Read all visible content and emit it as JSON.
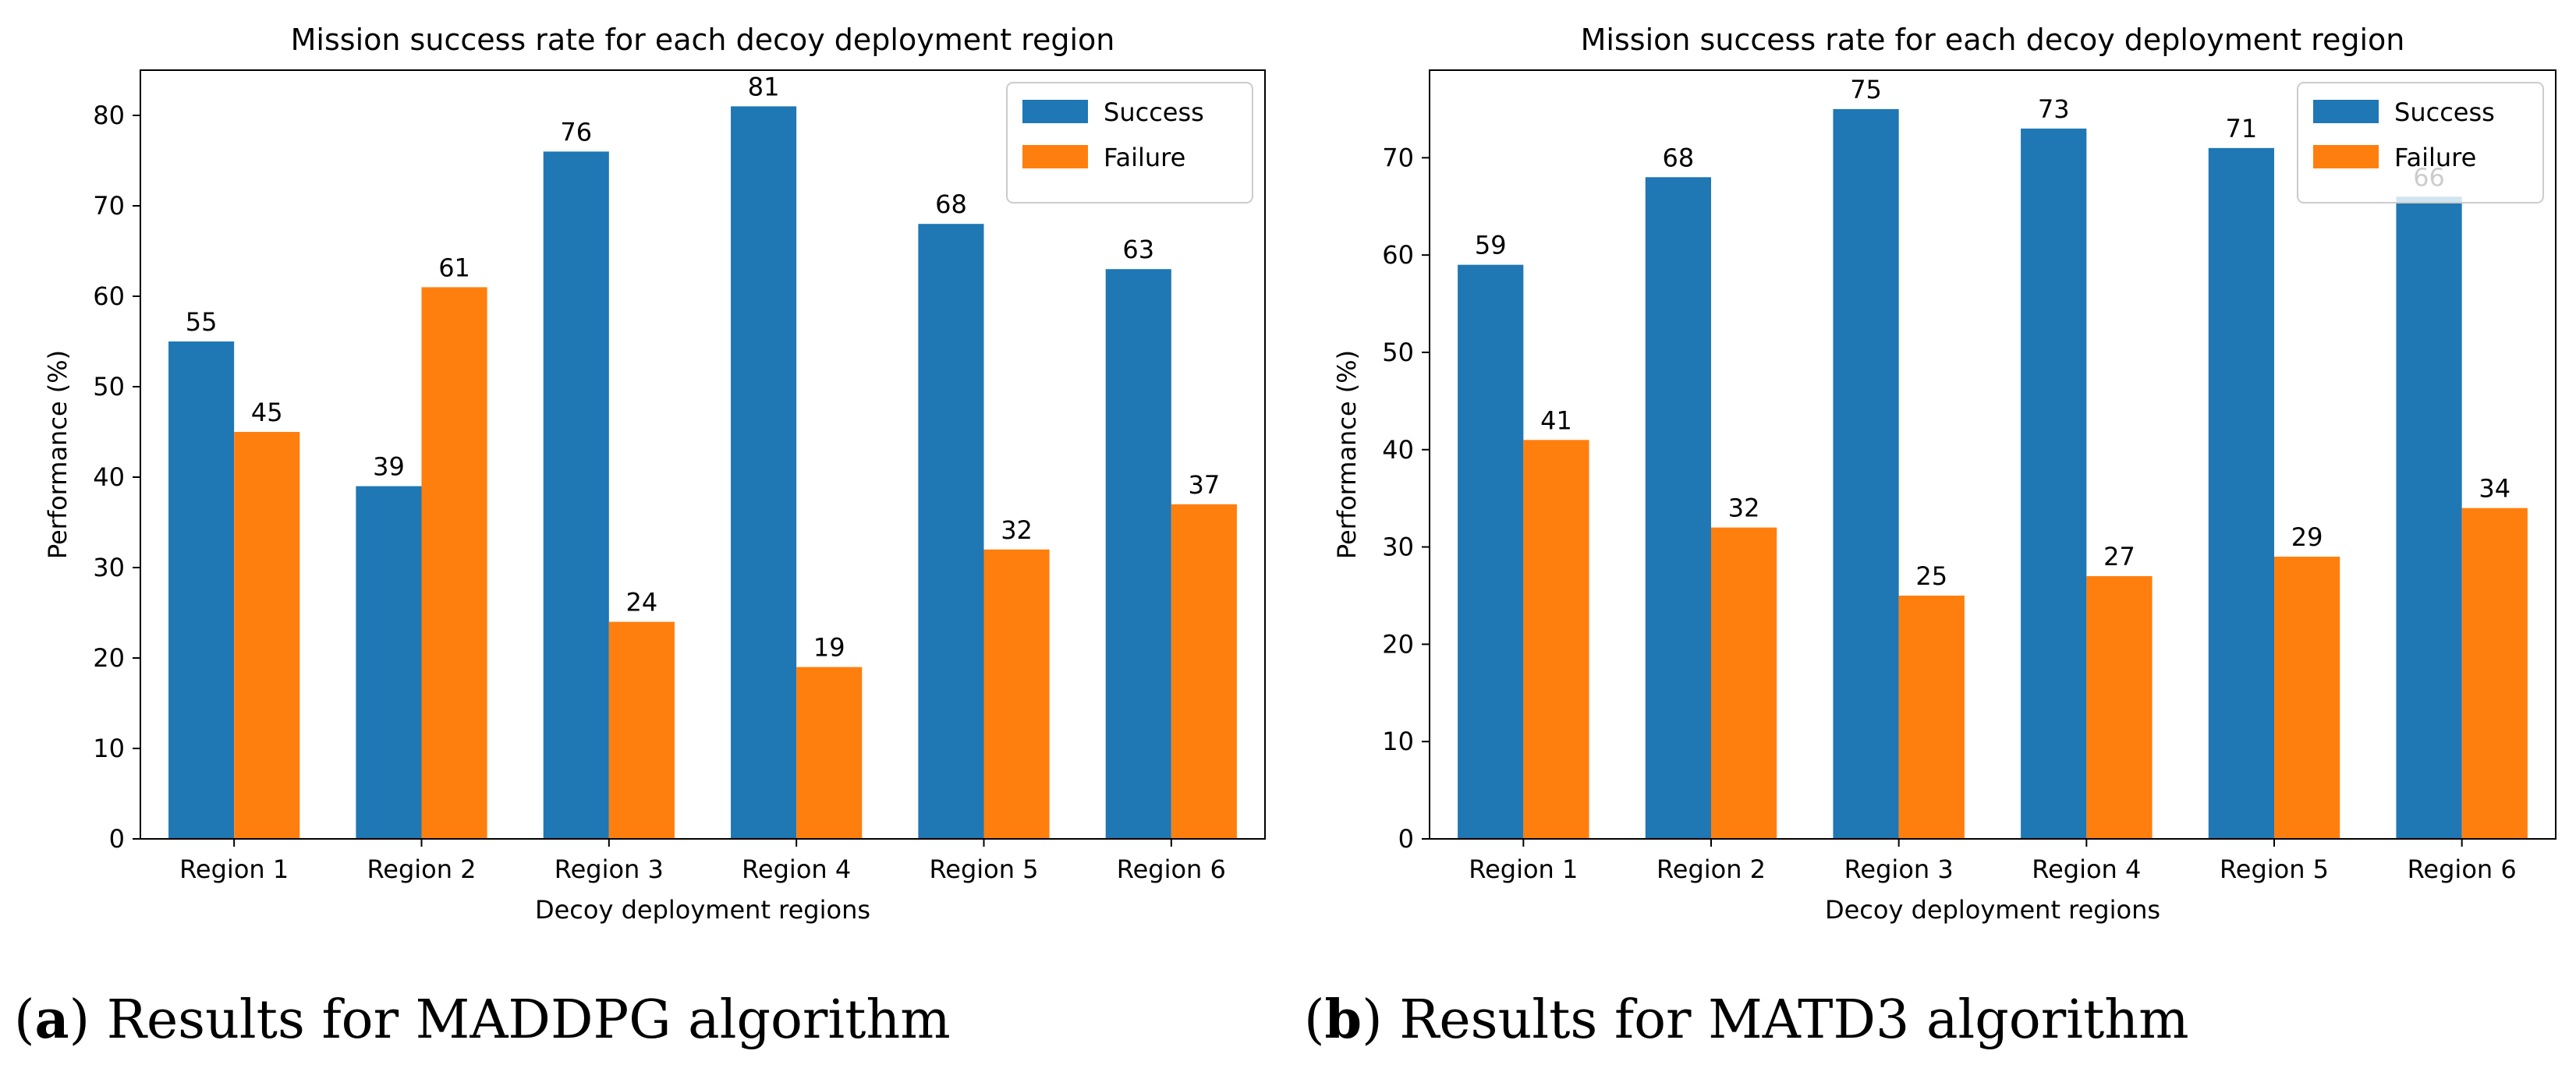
{
  "colors": {
    "success": "#1f77b4",
    "failure": "#ff7f0e",
    "axis": "#000000",
    "frame": "#000000"
  },
  "chart_data": [
    {
      "type": "bar",
      "title": "Mission success rate for each decoy deployment region",
      "xlabel": "Decoy deployment regions",
      "ylabel": "Performance (%)",
      "categories": [
        "Region 1",
        "Region 2",
        "Region 3",
        "Region 4",
        "Region 5",
        "Region 6"
      ],
      "series": [
        {
          "name": "Success",
          "values": [
            55,
            39,
            76,
            81,
            68,
            63
          ]
        },
        {
          "name": "Failure",
          "values": [
            45,
            61,
            24,
            19,
            32,
            37
          ]
        }
      ],
      "ylim": [
        0,
        85
      ],
      "yticks": [
        0,
        10,
        20,
        30,
        40,
        50,
        60,
        70,
        80
      ],
      "legend": "top-right",
      "grid": false,
      "caption": {
        "label": "a",
        "text": ") Results for MADDPG algorithm",
        "open": "("
      }
    },
    {
      "type": "bar",
      "title": "Mission success rate for each decoy deployment region",
      "xlabel": "Decoy deployment regions",
      "ylabel": "Performance (%)",
      "categories": [
        "Region 1",
        "Region 2",
        "Region 3",
        "Region 4",
        "Region 5",
        "Region 6"
      ],
      "series": [
        {
          "name": "Success",
          "values": [
            59,
            68,
            75,
            73,
            71,
            66
          ]
        },
        {
          "name": "Failure",
          "values": [
            41,
            32,
            25,
            27,
            29,
            34
          ]
        }
      ],
      "ylim": [
        0,
        79
      ],
      "yticks": [
        0,
        10,
        20,
        30,
        40,
        50,
        60,
        70
      ],
      "legend": "top-right",
      "grid": false,
      "caption": {
        "label": "b",
        "text": ") Results for MATD3 algorithm",
        "open": "("
      }
    }
  ]
}
